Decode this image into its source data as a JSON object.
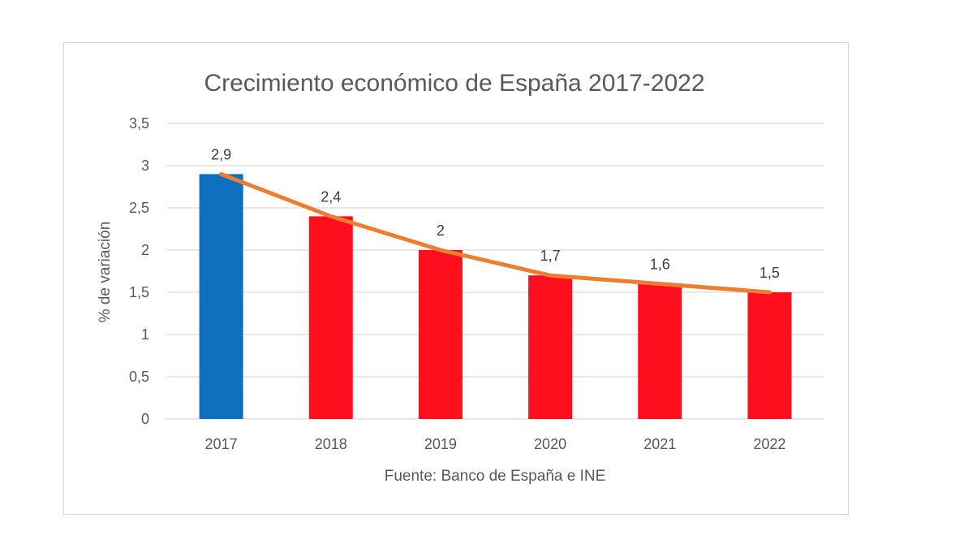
{
  "chart_data": {
    "type": "bar",
    "title": "Crecimiento económico de España 2017-2022",
    "xlabel": "Fuente: Banco de España e INE",
    "ylabel": "% de variación",
    "categories": [
      "2017",
      "2018",
      "2019",
      "2020",
      "2021",
      "2022"
    ],
    "values": [
      2.9,
      2.4,
      2,
      1.7,
      1.6,
      1.5
    ],
    "data_labels": [
      "2,9",
      "2,4",
      "2",
      "1,7",
      "1,6",
      "1,5"
    ],
    "bar_colors": [
      "#1070C0",
      "#FF0F1E",
      "#FF0F1E",
      "#FF0F1E",
      "#FF0F1E",
      "#FF0F1E"
    ],
    "trend_line": {
      "type": "line",
      "values": [
        2.9,
        2.4,
        2,
        1.7,
        1.6,
        1.5
      ],
      "color": "#ED7D31"
    },
    "ylim": [
      0,
      3.5
    ],
    "yticks": [
      0,
      0.5,
      1,
      1.5,
      2,
      2.5,
      3,
      3.5
    ],
    "ytick_labels": [
      "0",
      "0,5",
      "1",
      "1,5",
      "2",
      "2,5",
      "3",
      "3,5"
    ],
    "grid": true,
    "legend": "none"
  }
}
